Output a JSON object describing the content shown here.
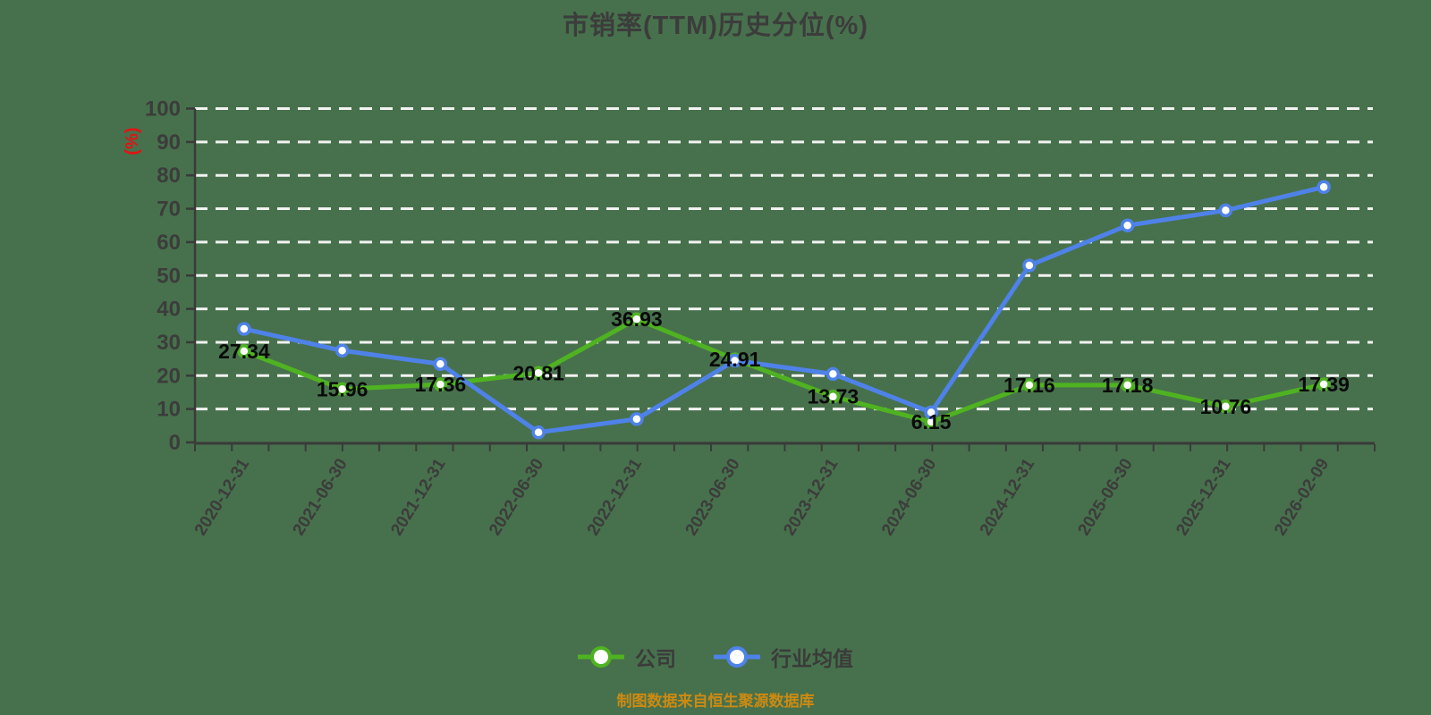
{
  "page": {
    "background": "#47714c"
  },
  "header": {
    "title": "市销率(TTM)历史分位(%)",
    "title_color": "#3c3c3c"
  },
  "chart_data": {
    "type": "line",
    "title": "市销率(TTM)历史分位(%)",
    "categories": [
      "2020-12-31",
      "2021-06-30",
      "2021-12-31",
      "2022-06-30",
      "2022-12-31",
      "2023-06-30",
      "2023-12-31",
      "2024-06-30",
      "2024-12-31",
      "2025-06-30",
      "2025-12-31",
      "2026-02-09"
    ],
    "series": [
      {
        "name": "公司",
        "color": "#4fb321",
        "show_labels": true,
        "values": [
          27.34,
          15.96,
          17.36,
          20.81,
          36.93,
          24.91,
          13.73,
          6.15,
          17.16,
          17.18,
          10.76,
          17.39
        ],
        "labels": [
          "27.34",
          "15.96",
          "17.36",
          "20.81",
          "36.93",
          "24.91",
          "13.73",
          "6.15",
          "17.16",
          "17.18",
          "10.76",
          "17.39"
        ]
      },
      {
        "name": "行业均值",
        "color": "#4f82e8",
        "show_labels": false,
        "values": [
          34,
          27.5,
          23.5,
          3,
          7,
          24.5,
          20.5,
          9,
          53,
          65,
          69.5,
          76.5
        ],
        "labels": []
      }
    ],
    "ylabel": "(%)",
    "ylabel_color": "#e01414",
    "ylim": [
      0,
      100
    ],
    "ytick_step": 10,
    "yticks": [
      "0",
      "10",
      "20",
      "30",
      "40",
      "50",
      "60",
      "70",
      "80",
      "90",
      "100"
    ],
    "grid": true,
    "gridline_color": "#f2f2f2",
    "axis_color": "#3a3a3a",
    "tick_label_color": "#3c3c3c",
    "data_label_color": "#0a0a0a",
    "marker_fill": "#ffffff",
    "legend_position": "bottom"
  },
  "footer": {
    "source_note": "制图数据来自恒生聚源数据库",
    "color": "#cd8a12"
  }
}
